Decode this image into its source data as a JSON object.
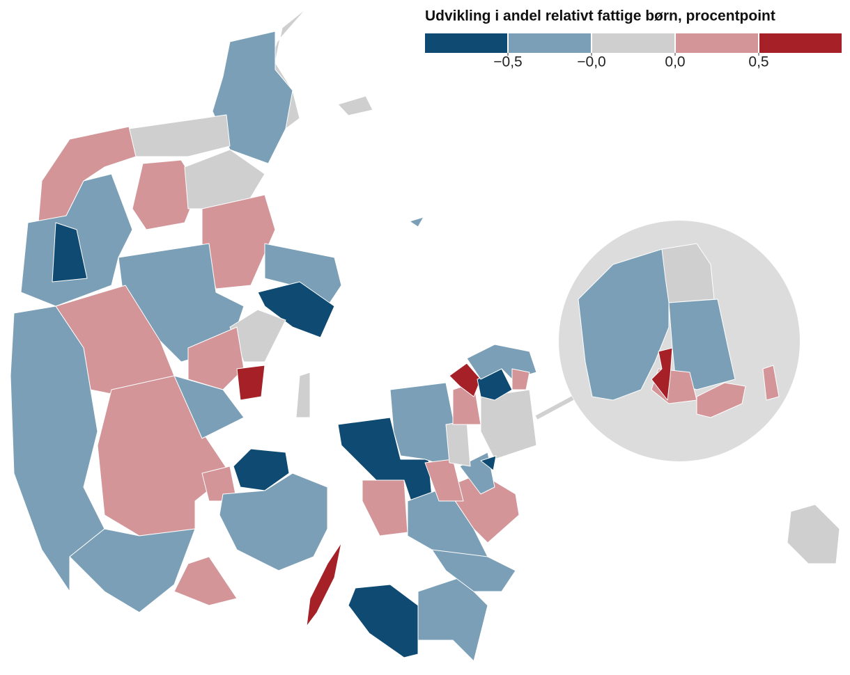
{
  "legend": {
    "title": "Udvikling i andel relativt fattige børn, procentpoint",
    "colors": [
      "#0e4a72",
      "#7a9fb6",
      "#cfcfcf",
      "#d39598",
      "#a52027"
    ],
    "labels": [
      "−0,5",
      "−0,0",
      "0,0",
      "0,5"
    ]
  }
}
